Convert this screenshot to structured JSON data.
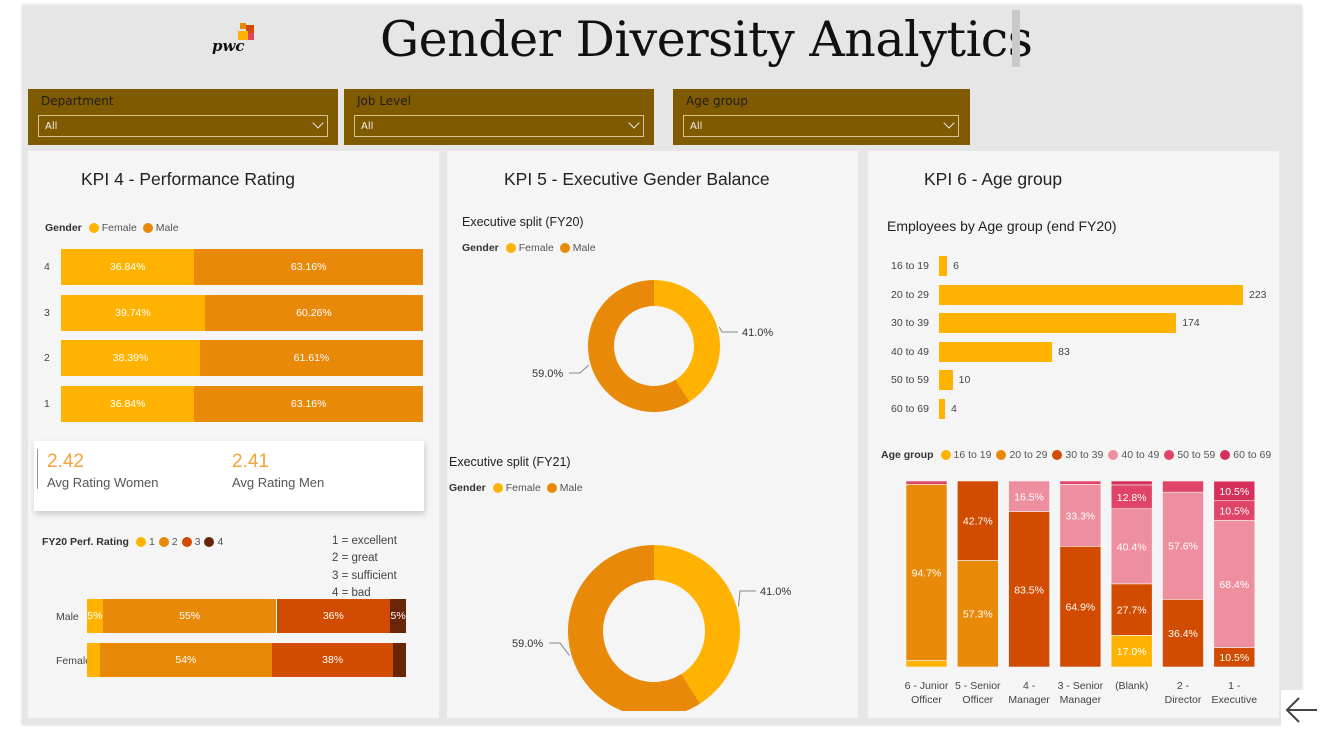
{
  "header": {
    "title": "Gender Diversity Analytics",
    "logo_text": "pwc"
  },
  "colors": {
    "female": "#FFB300",
    "male": "#E8890A",
    "rating1": "#FFB300",
    "rating2": "#E8890A",
    "rating3": "#D14B00",
    "rating4": "#6A2508",
    "age_16_19": "#FFB300",
    "age_20_29": "#E8890A",
    "age_30_39": "#D14B00",
    "age_40_49": "#EE8FA0",
    "age_50_59": "#E04466",
    "age_60_69": "#D6305A",
    "slicer_bg": "#7F5A00"
  },
  "filters": [
    {
      "label": "Department",
      "value": "All"
    },
    {
      "label": "Job Level",
      "value": "All"
    },
    {
      "label": "Age group",
      "value": "All"
    }
  ],
  "kpi4": {
    "title": "KPI 4 - Performance Rating",
    "legend_title": "Gender",
    "legend": [
      "Female",
      "Male"
    ],
    "rows": [
      {
        "label": "4",
        "female": "36.84%",
        "male": "63.16%"
      },
      {
        "label": "3",
        "female": "39.74%",
        "male": "60.26%"
      },
      {
        "label": "2",
        "female": "38.39%",
        "male": "61.61%"
      },
      {
        "label": "1",
        "female": "36.84%",
        "male": "63.16%"
      }
    ],
    "card": {
      "women_value": "2.42",
      "women_label": "Avg Rating Women",
      "men_value": "2.41",
      "men_label": "Avg Rating Men"
    },
    "perf_legend_title": "FY20 Perf. Rating",
    "perf_legend": [
      "1",
      "2",
      "3",
      "4"
    ],
    "scale": [
      "1 = excellent",
      "2 = great",
      "3 = sufficient",
      "4 = bad"
    ],
    "perf_rows": [
      {
        "label": "Male",
        "segments": [
          {
            "value": 5,
            "text": "5%"
          },
          {
            "value": 55,
            "text": "55%"
          },
          {
            "value": 36,
            "text": "36%"
          },
          {
            "value": 5,
            "text": "5%"
          }
        ]
      },
      {
        "label": "Female",
        "segments": [
          {
            "value": 4,
            "text": ""
          },
          {
            "value": 54,
            "text": "54%"
          },
          {
            "value": 38,
            "text": "38%"
          },
          {
            "value": 4,
            "text": ""
          }
        ]
      }
    ]
  },
  "kpi5": {
    "title": "KPI 5 - Executive Gender Balance",
    "legend_title": "Gender",
    "legend": [
      "Female",
      "Male"
    ],
    "donuts": [
      {
        "title": "Executive split (FY20)",
        "female_pct": 41.0,
        "male_pct": 59.0,
        "female_label": "41.0%",
        "male_label": "59.0%"
      },
      {
        "title": "Executive split (FY21)",
        "female_pct": 41.0,
        "male_pct": 59.0,
        "female_label": "41.0%",
        "male_label": "59.0%"
      }
    ]
  },
  "kpi6": {
    "title": "KPI 6 - Age group",
    "bar_title": "Employees by Age group (end FY20)",
    "age_bars": [
      {
        "label": "16 to 19",
        "value": 6
      },
      {
        "label": "20 to 29",
        "value": 223
      },
      {
        "label": "30 to 39",
        "value": 174
      },
      {
        "label": "40 to 49",
        "value": 83
      },
      {
        "label": "50 to 59",
        "value": 10
      },
      {
        "label": "60 to 69",
        "value": 4
      }
    ],
    "stack_legend_title": "Age group",
    "stack_legend": [
      "16 to 19",
      "20 to 29",
      "30 to 39",
      "40 to 49",
      "50 to 59",
      "60 to 69"
    ]
  },
  "chart_data": {
    "type": "bar",
    "title": "",
    "categories": [
      "6 - Junior Officer",
      "5 - Senior Officer",
      "4 - Manager",
      "3 - Senior Manager",
      "(Blank)",
      "2 - Director",
      "1 - Executive"
    ],
    "category_lines": [
      [
        "6 - Junior",
        "Officer"
      ],
      [
        "5 - Senior",
        "Officer"
      ],
      [
        "4 -",
        "Manager"
      ],
      [
        "3 - Senior",
        "Manager"
      ],
      [
        "(Blank)",
        ""
      ],
      [
        "2 -",
        "Director"
      ],
      [
        "1 -",
        "Executive"
      ]
    ],
    "stacked": true,
    "series": [
      {
        "name": "16 to 19",
        "values": [
          3.5,
          0,
          0,
          0,
          17.0,
          0,
          0
        ],
        "labels": [
          "",
          "",
          "",
          "",
          "17.0%",
          "",
          ""
        ]
      },
      {
        "name": "20 to 29",
        "values": [
          94.7,
          57.3,
          0,
          0,
          0,
          0,
          0
        ],
        "labels": [
          "94.7%",
          "57.3%",
          "",
          "",
          "",
          "",
          ""
        ]
      },
      {
        "name": "30 to 39",
        "values": [
          0,
          42.7,
          83.5,
          64.9,
          27.7,
          36.4,
          10.5
        ],
        "labels": [
          "",
          "42.7%",
          "83.5%",
          "64.9%",
          "27.7%",
          "36.4%",
          "10.5%"
        ]
      },
      {
        "name": "40 to 49",
        "values": [
          0,
          0,
          16.5,
          33.3,
          40.4,
          57.6,
          68.4
        ],
        "labels": [
          "",
          "",
          "16.5%",
          "33.3%",
          "40.4%",
          "57.6%",
          "68.4%"
        ]
      },
      {
        "name": "50 to 59",
        "values": [
          1.8,
          0,
          0,
          1.8,
          12.8,
          6.0,
          10.5
        ],
        "labels": [
          "",
          "",
          "",
          "",
          "12.8%",
          "",
          "10.5%"
        ]
      },
      {
        "name": "60 to 69",
        "values": [
          0,
          0,
          0,
          0,
          2.1,
          0,
          10.5
        ],
        "labels": [
          "",
          "",
          "",
          "",
          "",
          "",
          "10.5%"
        ]
      }
    ],
    "ylim": [
      0,
      100
    ]
  }
}
